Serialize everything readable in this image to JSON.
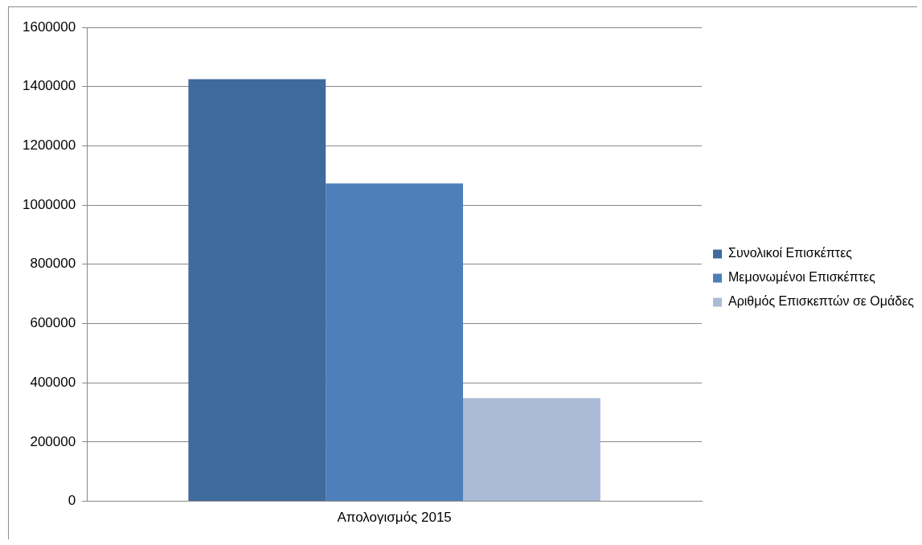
{
  "chart_data": {
    "type": "bar",
    "categories": [
      "Απολογισμός 2015"
    ],
    "series": [
      {
        "name": "Συνολικοί Επισκέπτες",
        "color": "#3f6a9c",
        "values": [
          1425000
        ]
      },
      {
        "name": "Μεμονωμένοι Επισκέπτες",
        "color": "#4e7fbb",
        "values": [
          1073000
        ]
      },
      {
        "name": "Αριθμός Επισκεπτών σε Ομάδες",
        "color": "#abbad7",
        "values": [
          348000
        ]
      }
    ],
    "ylim": [
      0,
      1600000
    ],
    "yticks": [
      0,
      200000,
      400000,
      600000,
      800000,
      1000000,
      1200000,
      1400000,
      1600000
    ],
    "grid": "y",
    "legend": "right"
  }
}
